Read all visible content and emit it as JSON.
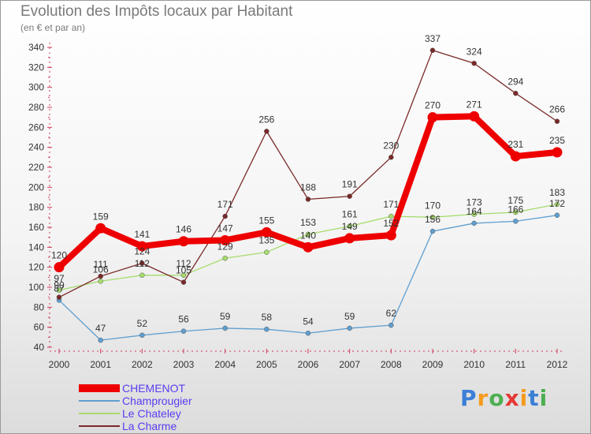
{
  "header": {
    "title": "Evolution des Impôts locaux par Habitant",
    "subtitle": "(en € et par an)"
  },
  "logo": {
    "letters": [
      "P",
      "r",
      "o",
      "x",
      "i",
      "t",
      "i"
    ],
    "colors": [
      "#3b7fd6",
      "#f59a1d",
      "#4caf50",
      "#e53935",
      "#f59a1d",
      "#3b7fd6",
      "#4caf50"
    ]
  },
  "chart_data": {
    "type": "line",
    "title": "Evolution des Impôts locaux par Habitant",
    "subtitle": "(en € et par an)",
    "x": [
      "2000",
      "2001",
      "2002",
      "2003",
      "2004",
      "2005",
      "2006",
      "2007",
      "2008",
      "2009",
      "2010",
      "2011",
      "2012"
    ],
    "ylim": [
      40,
      340
    ],
    "yticks": [
      40,
      60,
      80,
      100,
      120,
      140,
      160,
      180,
      200,
      220,
      240,
      260,
      280,
      300,
      320,
      340
    ],
    "grid": false,
    "legend": "bottom-left",
    "series": [
      {
        "name": "CHEMENOT",
        "color": "#ee0000",
        "values": [
          120,
          159,
          141,
          146,
          147,
          155,
          140,
          149,
          152,
          270,
          271,
          231,
          235
        ]
      },
      {
        "name": "Champrougier",
        "color": "#5f9fd0",
        "values": [
          87,
          47,
          52,
          56,
          59,
          58,
          54,
          59,
          62,
          156,
          164,
          166,
          172
        ]
      },
      {
        "name": "Le Chateley",
        "color": "#a6dc6c",
        "values": [
          97,
          106,
          112,
          112,
          129,
          135,
          153,
          161,
          171,
          170,
          173,
          175,
          183
        ]
      },
      {
        "name": "La Charme",
        "color": "#7a2828",
        "values": [
          90,
          111,
          124,
          105,
          171,
          256,
          188,
          191,
          230,
          337,
          324,
          294,
          266
        ]
      }
    ]
  }
}
